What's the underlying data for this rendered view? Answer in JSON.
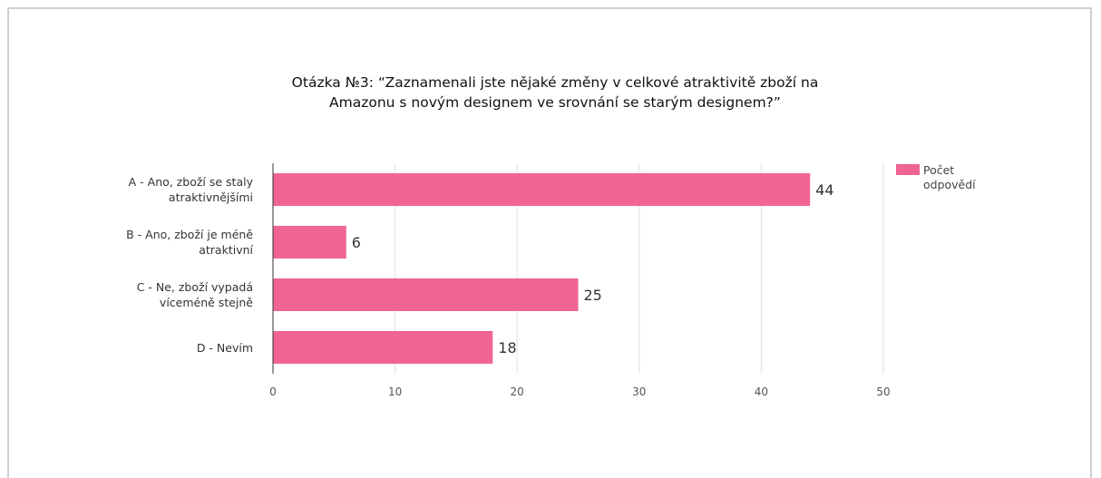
{
  "chart_data": {
    "type": "bar",
    "orientation": "horizontal",
    "title": "Otázka №3: “Zaznamenali jste nějaké změny v celkové atraktivitě zboží na Amazonu s novým designem ve srovnání se starým designem?”",
    "categories": [
      "A - Ano, zboží se staly atraktivnějšími",
      "B - Ano, zboží je méně atraktivní",
      "C - Ne, zboží vypadá víceméně stejně",
      "D - Nevím"
    ],
    "series": [
      {
        "name": "Počet odpovědí",
        "color": "#f06493",
        "values": [
          44,
          6,
          25,
          18
        ]
      }
    ],
    "xlim": [
      0,
      50
    ],
    "xticks": [
      0,
      10,
      20,
      30,
      40,
      50
    ],
    "grid": true,
    "legend": "right"
  }
}
